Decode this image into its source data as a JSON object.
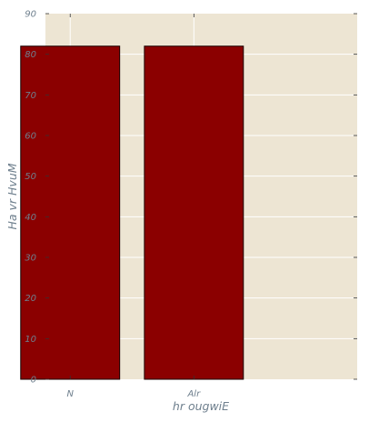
{
  "chart_data": {
    "type": "bar",
    "categories": [
      "N",
      "Alr"
    ],
    "values": [
      82,
      82
    ],
    "xlabel": "hr ougwiE",
    "ylabel": "Ha  vr HvuM",
    "ylim": [
      0,
      90
    ],
    "yticks": [
      "0",
      "10",
      "20",
      "30",
      "40",
      "50",
      "60",
      "70",
      "80",
      "90"
    ],
    "grid": true,
    "legend": "none",
    "colors": {
      "bar_fill": "#8b0000",
      "bar_edge": "#1a0000",
      "plot_background": "#ede5d3",
      "grid": "#ffffff",
      "text": "#6e7f8d"
    }
  }
}
